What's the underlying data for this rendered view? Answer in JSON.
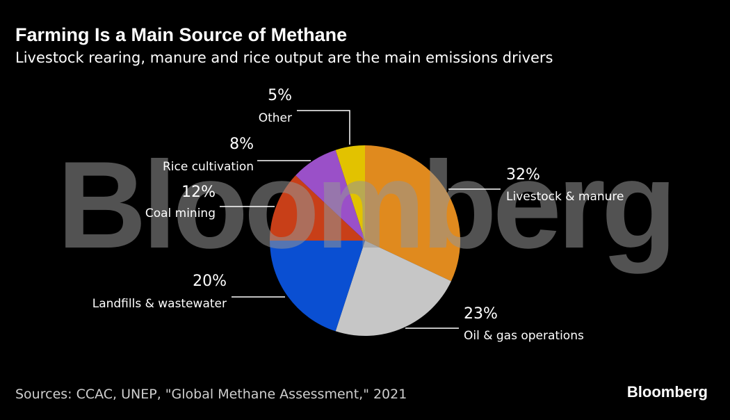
{
  "chart_data": {
    "type": "pie",
    "title": "Farming Is a Main Source of Methane",
    "subtitle": "Livestock rearing, manure and rice output are the main emissions drivers",
    "categories": [
      "Livestock & manure",
      "Oil & gas operations",
      "Landfills & wastewater",
      "Coal mining",
      "Rice cultivation",
      "Other"
    ],
    "values": [
      32,
      23,
      20,
      12,
      8,
      5
    ],
    "value_labels": [
      "32%",
      "23%",
      "20%",
      "12%",
      "8%",
      "5%"
    ],
    "colors": [
      "#e08a1e",
      "#c6c6c6",
      "#0a4fd2",
      "#c83f18",
      "#9a50c8",
      "#e2c200"
    ],
    "watermark": "Bloomberg",
    "source": "Sources: CCAC, UNEP, \"Global Methane Assessment,\" 2021",
    "logo": "Bloomberg"
  }
}
